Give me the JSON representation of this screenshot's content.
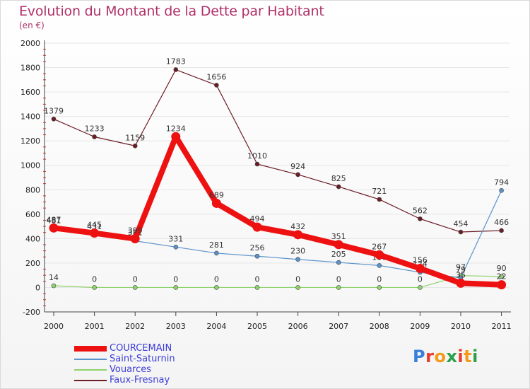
{
  "chart_data": {
    "type": "line",
    "title": "Evolution du Montant de la Dette par Habitant",
    "subtitle": "(en €)",
    "x": [
      "2000",
      "2001",
      "2002",
      "2003",
      "2004",
      "2005",
      "2006",
      "2007",
      "2008",
      "2009",
      "2010",
      "2011"
    ],
    "y_ticks": [
      "-200",
      "0",
      "200",
      "400",
      "600",
      "800",
      "1000",
      "1200",
      "1400",
      "1600",
      "1800",
      "2000"
    ],
    "ylim": [
      -200,
      2000
    ],
    "series": [
      {
        "name": "Faux-Fresnay",
        "color": "#6b1c25",
        "width": 1.2,
        "values": [
          1379,
          1233,
          1159,
          1783,
          1656,
          1010,
          924,
          825,
          721,
          562,
          454,
          466
        ],
        "labels": [
          "1379",
          "1233",
          "1159",
          "1783",
          "1656",
          "1010",
          "924",
          "825",
          "721",
          "562",
          "454",
          "466"
        ]
      },
      {
        "name": "Vouarces",
        "color": "#8fd36b",
        "width": 1.2,
        "values": [
          14,
          0,
          0,
          0,
          0,
          0,
          0,
          0,
          0,
          0,
          97,
          90
        ],
        "labels": [
          "14",
          "0",
          "0",
          "0",
          "0",
          "0",
          "0",
          "0",
          "0",
          "0",
          "97",
          "90"
        ]
      },
      {
        "name": "Saint-Saturnin",
        "color": "#5b93cc",
        "width": 1.2,
        "values": [
          481,
          431,
          381,
          331,
          281,
          256,
          230,
          205,
          180,
          124,
          79,
          794
        ],
        "labels": [
          "481",
          "431",
          "381",
          "331",
          "281",
          "256",
          "230",
          "205",
          "180",
          "124",
          "79",
          "794"
        ]
      },
      {
        "name": "COURCEMAIN",
        "color": "#ee1111",
        "width": 8,
        "values": [
          487,
          445,
          399,
          1234,
          689,
          494,
          432,
          351,
          267,
          156,
          35,
          22
        ],
        "labels": [
          "487",
          "445",
          "399",
          "1234",
          "689",
          "494",
          "432",
          "351",
          "267",
          "156",
          "35",
          "22"
        ]
      }
    ],
    "legend_order": [
      "COURCEMAIN",
      "Saint-Saturnin",
      "Vouarces",
      "Faux-Fresnay"
    ]
  },
  "logo": {
    "letters": [
      "P",
      "r",
      "o",
      "x",
      "i",
      "t",
      "i"
    ],
    "colors": [
      "#3a7fd9",
      "#e8392b",
      "#f39a1d",
      "#2c9f4a",
      "#e8392b",
      "#f39a1d",
      "#2c9f4a"
    ]
  }
}
